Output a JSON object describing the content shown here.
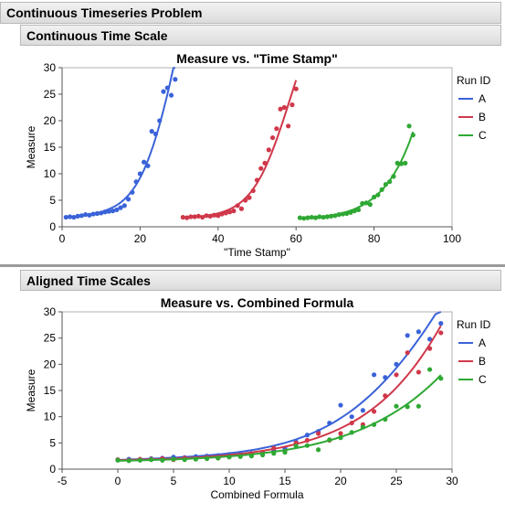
{
  "report": {
    "title": "Continuous Timeseries Problem",
    "section1": "Continuous Time Scale",
    "section2": "Aligned Time Scales"
  },
  "colors": {
    "A": "#3a63d8",
    "B": "#d0384a",
    "C": "#2fa834",
    "axis": "#555555"
  },
  "chart_data": [
    {
      "type": "scatter",
      "title": "Measure vs. \"Time Stamp\"",
      "xlabel": "\"Time Stamp\"",
      "ylabel": "Measure",
      "xlim": [
        0,
        100
      ],
      "ylim": [
        0,
        30
      ],
      "xticks": [
        0,
        20,
        40,
        60,
        80,
        100
      ],
      "yticks": [
        0,
        5,
        10,
        15,
        20,
        25,
        30
      ],
      "legend_title": "Run ID",
      "legend_position": "right",
      "series": [
        {
          "name": "A",
          "x": [
            1,
            2,
            3,
            4,
            5,
            6,
            7,
            8,
            9,
            10,
            11,
            12,
            13,
            14,
            15,
            16,
            17,
            18,
            19,
            20,
            21,
            22,
            23,
            24,
            25,
            26,
            27,
            28,
            29
          ],
          "y": [
            1.8,
            1.9,
            1.8,
            2.0,
            2.1,
            2.3,
            2.2,
            2.4,
            2.5,
            2.6,
            2.8,
            2.9,
            3.0,
            3.2,
            3.6,
            4.0,
            5.2,
            6.5,
            8.5,
            10.0,
            12.2,
            11.5,
            18.0,
            17.5,
            20.0,
            25.5,
            26.2,
            24.8,
            27.8
          ],
          "fit": "smooth"
        },
        {
          "name": "B",
          "x": [
            31,
            32,
            33,
            34,
            35,
            36,
            37,
            38,
            39,
            40,
            41,
            42,
            43,
            44,
            45,
            46,
            47,
            48,
            49,
            50,
            51,
            52,
            53,
            54,
            55,
            56,
            57,
            58,
            59,
            60
          ],
          "y": [
            1.8,
            1.7,
            1.9,
            1.9,
            2.0,
            1.8,
            2.1,
            2.0,
            2.2,
            2.1,
            2.4,
            2.6,
            2.8,
            3.0,
            4.0,
            3.4,
            5.0,
            5.5,
            6.8,
            8.8,
            11.0,
            12.0,
            14.5,
            16.8,
            18.5,
            22.2,
            22.5,
            19.0,
            23.0,
            26.0
          ],
          "fit": "smooth"
        },
        {
          "name": "C",
          "x": [
            61,
            62,
            63,
            64,
            65,
            66,
            67,
            68,
            69,
            70,
            71,
            72,
            73,
            74,
            75,
            76,
            77,
            78,
            79,
            80,
            81,
            82,
            83,
            84,
            85,
            86,
            87,
            88,
            89,
            90
          ],
          "y": [
            1.7,
            1.6,
            1.7,
            1.8,
            1.7,
            1.9,
            1.8,
            1.9,
            2.0,
            2.1,
            2.3,
            2.4,
            2.5,
            2.7,
            3.0,
            3.2,
            4.4,
            4.5,
            4.2,
            5.6,
            6.0,
            7.0,
            8.0,
            8.5,
            9.5,
            12.0,
            11.9,
            12.0,
            19.0,
            17.3
          ],
          "fit": "smooth"
        }
      ]
    },
    {
      "type": "scatter",
      "title": "Measure vs. Combined Formula",
      "xlabel": "Combined Formula",
      "ylabel": "Measure",
      "xlim": [
        -5,
        30
      ],
      "ylim": [
        0,
        30
      ],
      "xticks": [
        -5,
        0,
        5,
        10,
        15,
        20,
        25,
        30
      ],
      "yticks": [
        0,
        5,
        10,
        15,
        20,
        25,
        30
      ],
      "legend_title": "Run ID",
      "legend_position": "right",
      "series": [
        {
          "name": "A",
          "x": [
            0,
            1,
            2,
            3,
            4,
            5,
            6,
            7,
            8,
            9,
            10,
            11,
            12,
            13,
            14,
            15,
            16,
            17,
            18,
            19,
            20,
            21,
            22,
            23,
            24,
            25,
            26,
            27,
            28,
            29
          ],
          "y": [
            1.8,
            1.9,
            1.8,
            2.0,
            2.1,
            2.3,
            2.2,
            2.4,
            2.5,
            2.6,
            2.8,
            2.9,
            3.0,
            3.2,
            3.6,
            4.0,
            5.2,
            6.5,
            7.2,
            8.8,
            12.2,
            10.0,
            11.2,
            18.0,
            17.5,
            20.0,
            25.5,
            26.2,
            24.8,
            27.8
          ],
          "fit": "smooth"
        },
        {
          "name": "B",
          "x": [
            0,
            1,
            2,
            3,
            4,
            5,
            6,
            7,
            8,
            9,
            10,
            11,
            12,
            13,
            14,
            15,
            16,
            17,
            18,
            19,
            20,
            21,
            22,
            23,
            24,
            25,
            26,
            27,
            28,
            29
          ],
          "y": [
            1.8,
            1.7,
            1.9,
            1.9,
            2.0,
            1.8,
            2.1,
            2.0,
            2.2,
            2.1,
            2.4,
            2.6,
            2.8,
            3.0,
            4.0,
            3.4,
            5.0,
            5.5,
            6.8,
            5.5,
            6.8,
            8.8,
            8.5,
            11.0,
            14.0,
            18.0,
            22.2,
            18.5,
            23.0,
            26.0
          ],
          "fit": "smooth"
        },
        {
          "name": "C",
          "x": [
            0,
            1,
            2,
            3,
            4,
            5,
            6,
            7,
            8,
            9,
            10,
            11,
            12,
            13,
            14,
            15,
            16,
            17,
            18,
            19,
            20,
            21,
            22,
            23,
            24,
            25,
            26,
            27,
            28,
            29
          ],
          "y": [
            1.7,
            1.6,
            1.7,
            1.8,
            1.7,
            1.9,
            1.8,
            1.9,
            2.0,
            2.1,
            2.3,
            2.4,
            2.5,
            2.7,
            3.0,
            3.2,
            4.4,
            4.5,
            3.7,
            5.6,
            6.0,
            7.0,
            8.0,
            8.5,
            9.5,
            12.0,
            11.9,
            12.0,
            19.0,
            17.3
          ],
          "fit": "smooth"
        }
      ]
    }
  ]
}
